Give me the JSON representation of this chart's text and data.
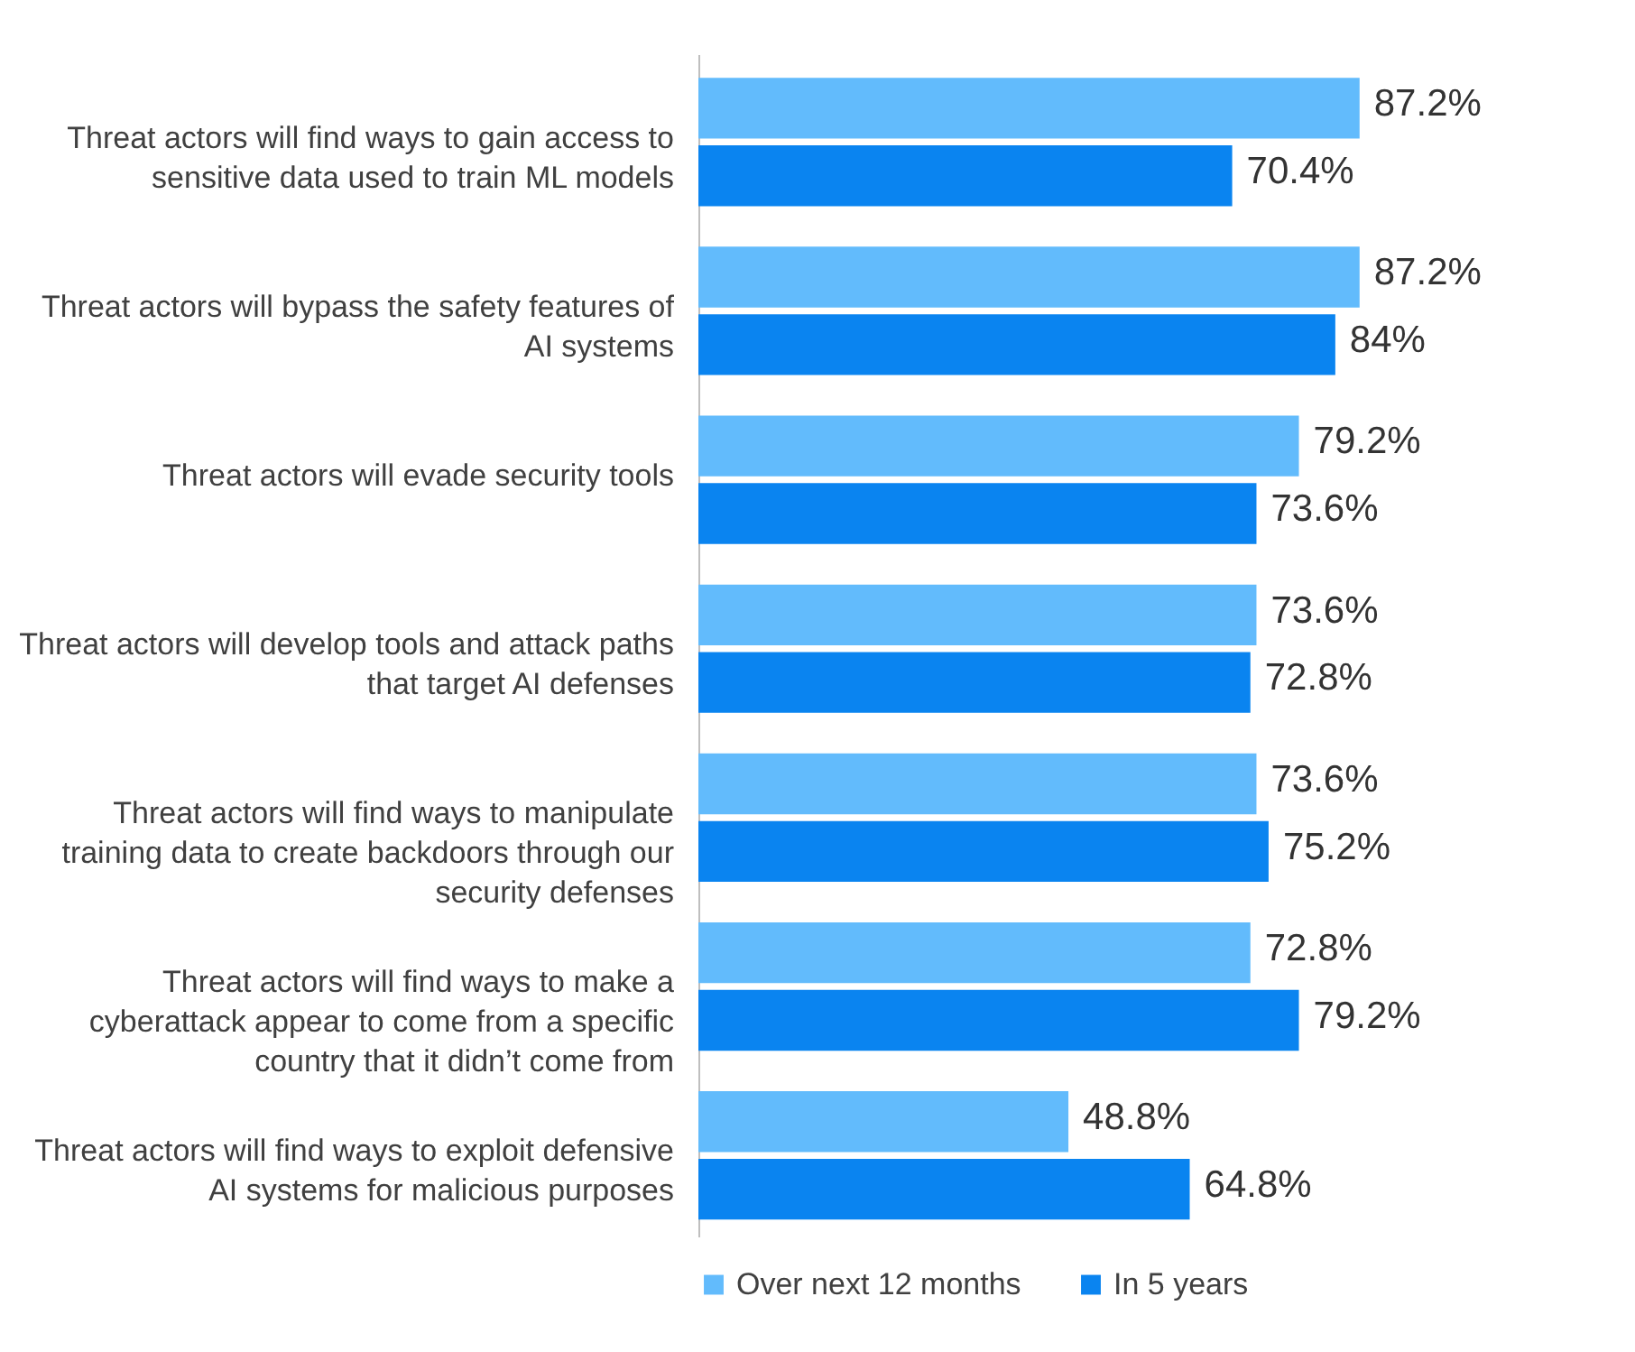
{
  "chart_data": {
    "type": "bar",
    "orientation": "horizontal",
    "categories": [
      "Threat actors will find ways to gain access to sensitive data used to train ML models",
      "Threat actors will bypass the safety features of AI systems",
      "Threat actors will evade security tools",
      "Threat actors will develop tools and attack paths that target AI defenses",
      "Threat actors will find ways to manipulate training data to create backdoors through our security defenses",
      "Threat actors will find ways to make a cyberattack appear to come from a specific country that it didn’t come from",
      "Threat actors will find ways to exploit defensive AI systems for malicious purposes"
    ],
    "series": [
      {
        "name": "Over next 12 months",
        "color": "#62bbfc",
        "values": [
          87.2,
          87.2,
          79.2,
          73.6,
          73.6,
          72.8,
          48.8
        ],
        "value_labels": [
          "87.2%",
          "87.2%",
          "79.2%",
          "73.6%",
          "73.6%",
          "72.8%",
          "48.8%"
        ]
      },
      {
        "name": "In 5 years",
        "color": "#0a84f0",
        "values": [
          70.4,
          84,
          73.6,
          72.8,
          75.2,
          79.2,
          64.8
        ],
        "value_labels": [
          "70.4%",
          "84%",
          "73.6%",
          "72.8%",
          "75.2%",
          "79.2%",
          "64.8%"
        ]
      }
    ],
    "legend": "bottom",
    "grid": false
  }
}
